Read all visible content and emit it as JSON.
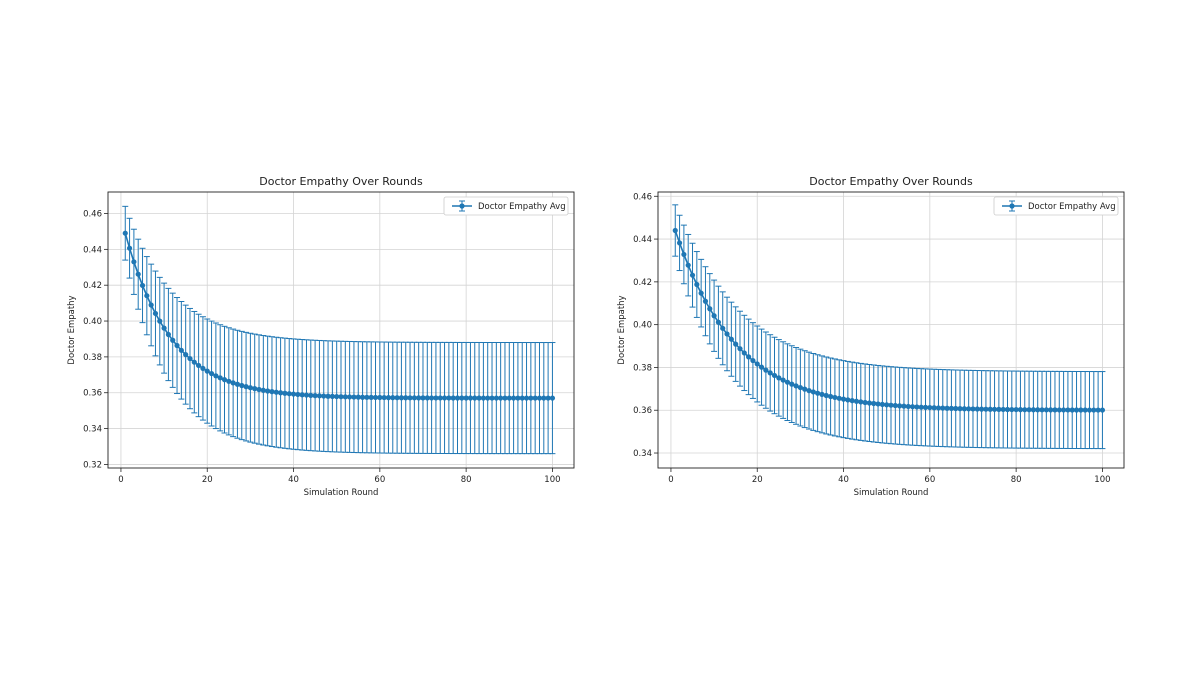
{
  "chart_data": [
    {
      "type": "line",
      "title": "Doctor Empathy Over Rounds",
      "xlabel": "Simulation Round",
      "ylabel": "Doctor Empathy",
      "xlim": [
        -3,
        105
      ],
      "ylim": [
        0.318,
        0.472
      ],
      "xticks": [
        "0",
        "20",
        "40",
        "60",
        "80",
        "100"
      ],
      "xtick_values": [
        0,
        20,
        40,
        60,
        80,
        100
      ],
      "yticks": [
        "0.32",
        "0.34",
        "0.36",
        "0.38",
        "0.40",
        "0.42",
        "0.44",
        "0.46"
      ],
      "ytick_values": [
        0.32,
        0.34,
        0.36,
        0.38,
        0.4,
        0.42,
        0.44,
        0.46
      ],
      "grid": true,
      "legend": "upper-right",
      "color": "#1f77b4",
      "series": [
        {
          "name": "Doctor Empathy Avg",
          "x_start": 1,
          "x_end": 100,
          "y_first": 0.449,
          "y_plateau": 0.357,
          "decay_rounds": 10.5,
          "err_first": 0.015,
          "err_plateau": 0.031,
          "err_growth_rounds": 9
        }
      ]
    },
    {
      "type": "line",
      "title": "Doctor Empathy Over Rounds",
      "xlabel": "Simulation Round",
      "ylabel": "Doctor Empathy",
      "xlim": [
        -3,
        105
      ],
      "ylim": [
        0.333,
        0.462
      ],
      "xticks": [
        "0",
        "20",
        "40",
        "60",
        "80",
        "100"
      ],
      "xtick_values": [
        0,
        20,
        40,
        60,
        80,
        100
      ],
      "yticks": [
        "0.34",
        "0.36",
        "0.38",
        "0.40",
        "0.42",
        "0.44",
        "0.46"
      ],
      "ytick_values": [
        0.34,
        0.36,
        0.38,
        0.4,
        0.42,
        0.44,
        0.46
      ],
      "grid": true,
      "legend": "upper-right",
      "color": "#1f77b4",
      "series": [
        {
          "name": "Doctor Empathy Avg",
          "x_start": 1,
          "x_end": 100,
          "y_first": 0.444,
          "y_plateau": 0.36,
          "decay_rounds": 14,
          "err_first": 0.012,
          "err_plateau": 0.018,
          "err_growth_rounds": 6
        }
      ]
    }
  ]
}
